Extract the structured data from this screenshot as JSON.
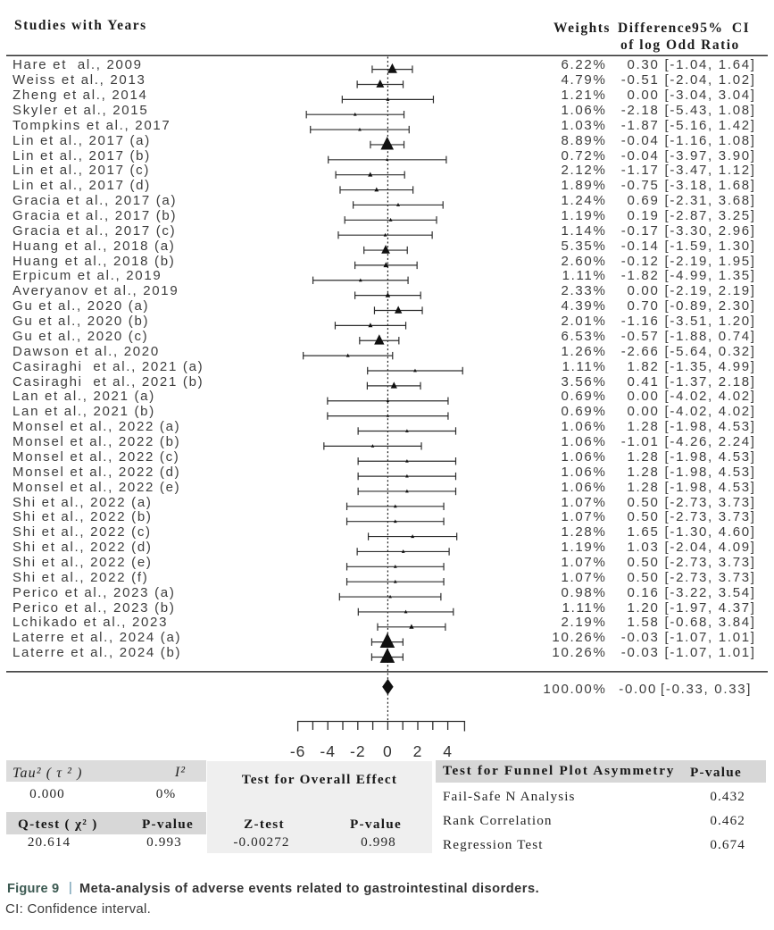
{
  "chart_data": {
    "type": "forest",
    "title": "Meta-analysis of adverse events related to gastrointestinal disorders",
    "effect_measure": "Difference of log Odd Ratio",
    "columns": {
      "studies": "Studies with Years",
      "weights": "Weights",
      "difference": "Difference",
      "ci": "95% CI",
      "subtitle": "of log Odd Ratio"
    },
    "x_tick_labels": [
      -6,
      -4,
      -2,
      0,
      2,
      4
    ],
    "xlim": [
      -6,
      5.2
    ],
    "zero_line": 0,
    "studies": [
      {
        "label": "Hare et  al., 2009",
        "weight": "6.22%",
        "difference": "0.30",
        "ci": "[-1.04, 1.64]",
        "w": 6.22,
        "m": 0.3,
        "lo": -1.04,
        "hi": 1.64
      },
      {
        "label": "Weiss et al., 2013",
        "weight": "4.79%",
        "difference": "-0.51",
        "ci": "[-2.04, 1.02]",
        "w": 4.79,
        "m": -0.51,
        "lo": -2.04,
        "hi": 1.02
      },
      {
        "label": "Zheng et al., 2014",
        "weight": "1.21%",
        "difference": "0.00",
        "ci": "[-3.04, 3.04]",
        "w": 1.21,
        "m": 0.0,
        "lo": -3.04,
        "hi": 3.04
      },
      {
        "label": "Skyler et al., 2015",
        "weight": "1.06%",
        "difference": "-2.18",
        "ci": "[-5.43, 1.08]",
        "w": 1.06,
        "m": -2.18,
        "lo": -5.43,
        "hi": 1.08
      },
      {
        "label": "Tompkins et al., 2017",
        "weight": "1.03%",
        "difference": "-1.87",
        "ci": "[-5.16, 1.42]",
        "w": 1.03,
        "m": -1.87,
        "lo": -5.16,
        "hi": 1.42
      },
      {
        "label": "Lin et al., 2017 (a)",
        "weight": "8.89%",
        "difference": "-0.04",
        "ci": "[-1.16, 1.08]",
        "w": 8.89,
        "m": -0.04,
        "lo": -1.16,
        "hi": 1.08
      },
      {
        "label": "Lin et al., 2017 (b)",
        "weight": "0.72%",
        "difference": "-0.04",
        "ci": "[-3.97, 3.90]",
        "w": 0.72,
        "m": -0.04,
        "lo": -3.97,
        "hi": 3.9
      },
      {
        "label": "Lin et al., 2017 (c)",
        "weight": "2.12%",
        "difference": "-1.17",
        "ci": "[-3.47, 1.12]",
        "w": 2.12,
        "m": -1.17,
        "lo": -3.47,
        "hi": 1.12
      },
      {
        "label": "Lin et al., 2017 (d)",
        "weight": "1.89%",
        "difference": "-0.75",
        "ci": "[-3.18, 1.68]",
        "w": 1.89,
        "m": -0.75,
        "lo": -3.18,
        "hi": 1.68
      },
      {
        "label": "Gracia et al., 2017 (a)",
        "weight": "1.24%",
        "difference": "0.69",
        "ci": "[-2.31, 3.68]",
        "w": 1.24,
        "m": 0.69,
        "lo": -2.31,
        "hi": 3.68
      },
      {
        "label": "Gracia et al., 2017 (b)",
        "weight": "1.19%",
        "difference": "0.19",
        "ci": "[-2.87, 3.25]",
        "w": 1.19,
        "m": 0.19,
        "lo": -2.87,
        "hi": 3.25
      },
      {
        "label": "Gracia et al., 2017 (c)",
        "weight": "1.14%",
        "difference": "-0.17",
        "ci": "[-3.30, 2.96]",
        "w": 1.14,
        "m": -0.17,
        "lo": -3.3,
        "hi": 2.96
      },
      {
        "label": "Huang et al., 2018 (a)",
        "weight": "5.35%",
        "difference": "-0.14",
        "ci": "[-1.59, 1.30]",
        "w": 5.35,
        "m": -0.14,
        "lo": -1.59,
        "hi": 1.3
      },
      {
        "label": "Huang et al., 2018 (b)",
        "weight": "2.60%",
        "difference": "-0.12",
        "ci": "[-2.19, 1.95]",
        "w": 2.6,
        "m": -0.12,
        "lo": -2.19,
        "hi": 1.95
      },
      {
        "label": "Erpicum et al., 2019",
        "weight": "1.11%",
        "difference": "-1.82",
        "ci": "[-4.99, 1.35]",
        "w": 1.11,
        "m": -1.82,
        "lo": -4.99,
        "hi": 1.35
      },
      {
        "label": "Averyanov et al., 2019",
        "weight": "2.33%",
        "difference": "0.00",
        "ci": "[-2.19, 2.19]",
        "w": 2.33,
        "m": 0.0,
        "lo": -2.19,
        "hi": 2.19
      },
      {
        "label": "Gu et al., 2020 (a)",
        "weight": "4.39%",
        "difference": "0.70",
        "ci": "[-0.89, 2.30]",
        "w": 4.39,
        "m": 0.7,
        "lo": -0.89,
        "hi": 2.3
      },
      {
        "label": "Gu et al., 2020 (b)",
        "weight": "2.01%",
        "difference": "-1.16",
        "ci": "[-3.51, 1.20]",
        "w": 2.01,
        "m": -1.16,
        "lo": -3.51,
        "hi": 1.2
      },
      {
        "label": "Gu et al., 2020 (c)",
        "weight": "6.53%",
        "difference": "-0.57",
        "ci": "[-1.88, 0.74]",
        "w": 6.53,
        "m": -0.57,
        "lo": -1.88,
        "hi": 0.74
      },
      {
        "label": "Dawson et al., 2020",
        "weight": "1.26%",
        "difference": "-2.66",
        "ci": "[-5.64, 0.32]",
        "w": 1.26,
        "m": -2.66,
        "lo": -5.64,
        "hi": 0.32
      },
      {
        "label": "Casiraghi  et al., 2021 (a)",
        "weight": "1.11%",
        "difference": "1.82",
        "ci": "[-1.35, 4.99]",
        "w": 1.11,
        "m": 1.82,
        "lo": -1.35,
        "hi": 4.99
      },
      {
        "label": "Casiraghi  et al., 2021 (b)",
        "weight": "3.56%",
        "difference": "0.41",
        "ci": "[-1.37, 2.18]",
        "w": 3.56,
        "m": 0.41,
        "lo": -1.37,
        "hi": 2.18
      },
      {
        "label": "Lan et al., 2021 (a)",
        "weight": "0.69%",
        "difference": "0.00",
        "ci": "[-4.02, 4.02]",
        "w": 0.69,
        "m": 0.0,
        "lo": -4.02,
        "hi": 4.02
      },
      {
        "label": "Lan et al., 2021 (b)",
        "weight": "0.69%",
        "difference": "0.00",
        "ci": "[-4.02, 4.02]",
        "w": 0.69,
        "m": 0.0,
        "lo": -4.02,
        "hi": 4.02
      },
      {
        "label": "Monsel et al., 2022 (a)",
        "weight": "1.06%",
        "difference": "1.28",
        "ci": "[-1.98, 4.53]",
        "w": 1.06,
        "m": 1.28,
        "lo": -1.98,
        "hi": 4.53
      },
      {
        "label": "Monsel et al., 2022 (b)",
        "weight": "1.06%",
        "difference": "-1.01",
        "ci": "[-4.26, 2.24]",
        "w": 1.06,
        "m": -1.01,
        "lo": -4.26,
        "hi": 2.24
      },
      {
        "label": "Monsel et al., 2022 (c)",
        "weight": "1.06%",
        "difference": "1.28",
        "ci": "[-1.98, 4.53]",
        "w": 1.06,
        "m": 1.28,
        "lo": -1.98,
        "hi": 4.53
      },
      {
        "label": "Monsel et al., 2022 (d)",
        "weight": "1.06%",
        "difference": "1.28",
        "ci": "[-1.98, 4.53]",
        "w": 1.06,
        "m": 1.28,
        "lo": -1.98,
        "hi": 4.53
      },
      {
        "label": "Monsel et al., 2022 (e)",
        "weight": "1.06%",
        "difference": "1.28",
        "ci": "[-1.98, 4.53]",
        "w": 1.06,
        "m": 1.28,
        "lo": -1.98,
        "hi": 4.53
      },
      {
        "label": "Shi et al., 2022 (a)",
        "weight": "1.07%",
        "difference": "0.50",
        "ci": "[-2.73, 3.73]",
        "w": 1.07,
        "m": 0.5,
        "lo": -2.73,
        "hi": 3.73
      },
      {
        "label": "Shi et al., 2022 (b)",
        "weight": "1.07%",
        "difference": "0.50",
        "ci": "[-2.73, 3.73]",
        "w": 1.07,
        "m": 0.5,
        "lo": -2.73,
        "hi": 3.73
      },
      {
        "label": "Shi et al., 2022 (c)",
        "weight": "1.28%",
        "difference": "1.65",
        "ci": "[-1.30, 4.60]",
        "w": 1.28,
        "m": 1.65,
        "lo": -1.3,
        "hi": 4.6
      },
      {
        "label": "Shi et al., 2022 (d)",
        "weight": "1.19%",
        "difference": "1.03",
        "ci": "[-2.04, 4.09]",
        "w": 1.19,
        "m": 1.03,
        "lo": -2.04,
        "hi": 4.09
      },
      {
        "label": "Shi et al., 2022 (e)",
        "weight": "1.07%",
        "difference": "0.50",
        "ci": "[-2.73, 3.73]",
        "w": 1.07,
        "m": 0.5,
        "lo": -2.73,
        "hi": 3.73
      },
      {
        "label": "Shi et al., 2022 (f)",
        "weight": "1.07%",
        "difference": "0.50",
        "ci": "[-2.73, 3.73]",
        "w": 1.07,
        "m": 0.5,
        "lo": -2.73,
        "hi": 3.73
      },
      {
        "label": "Perico et al., 2023 (a)",
        "weight": "0.98%",
        "difference": "0.16",
        "ci": "[-3.22, 3.54]",
        "w": 0.98,
        "m": 0.16,
        "lo": -3.22,
        "hi": 3.54
      },
      {
        "label": "Perico et al., 2023 (b)",
        "weight": "1.11%",
        "difference": "1.20",
        "ci": "[-1.97, 4.37]",
        "w": 1.11,
        "m": 1.2,
        "lo": -1.97,
        "hi": 4.37
      },
      {
        "label": "Lchikado et al., 2023",
        "weight": "2.19%",
        "difference": "1.58",
        "ci": "[-0.68, 3.84]",
        "w": 2.19,
        "m": 1.58,
        "lo": -0.68,
        "hi": 3.84
      },
      {
        "label": "Laterre et al., 2024 (a)",
        "weight": "10.26%",
        "difference": "-0.03",
        "ci": "[-1.07, 1.01]",
        "w": 10.26,
        "m": -0.03,
        "lo": -1.07,
        "hi": 1.01
      },
      {
        "label": "Laterre et al., 2024 (b)",
        "weight": "10.26%",
        "difference": "-0.03",
        "ci": "[-1.07, 1.01]",
        "w": 10.26,
        "m": -0.03,
        "lo": -1.07,
        "hi": 1.01
      }
    ],
    "overall": {
      "weight": "100.00%",
      "difference": "-0.00",
      "ci": "[-0.33, 0.33]",
      "m": -0.0,
      "lo": -0.33,
      "hi": 0.33
    }
  },
  "stats": {
    "heterogeneity": {
      "tau2_header": "Tau² ( τ ² )",
      "i2_header": "I²",
      "tau2_value": "0.000",
      "i2_value": "0%",
      "qtest_header": "Q-test ( χ² )",
      "pvalue_header": "P-value",
      "qtest_value": "20.614",
      "pvalue_value": "0.993"
    },
    "overall_effect": {
      "title": "Test for Overall Effect",
      "ztest_header": "Z-test",
      "pvalue_header": "P-value",
      "ztest_value": "-0.00272",
      "pvalue_value": "0.998"
    },
    "funnel": {
      "title": "Test for Funnel Plot Asymmetry",
      "pvalue_header": "P-value",
      "rows": [
        {
          "label": "Fail-Safe N Analysis",
          "value": "0.432"
        },
        {
          "label": "Rank Correlation",
          "value": "0.462"
        },
        {
          "label": "Regression Test",
          "value": "0.674"
        }
      ]
    }
  },
  "caption": {
    "label": "Figure 9",
    "separator": "|",
    "text": "Meta-analysis of adverse events related to gastrointestinal disorders.",
    "note": "CI: Confidence interval."
  },
  "colors": {
    "marker": "#101010",
    "line": "#2e2e2e",
    "row_text": "#3c3c3c",
    "header_text": "#1d1d1d",
    "band_light": "#dcdcdc",
    "band_dark": "#d7d7d7",
    "middle_block": "#efefef",
    "caption_label": "#3c5a52",
    "caption_separator": "#5a8ca6",
    "caption_text": "#333333"
  }
}
